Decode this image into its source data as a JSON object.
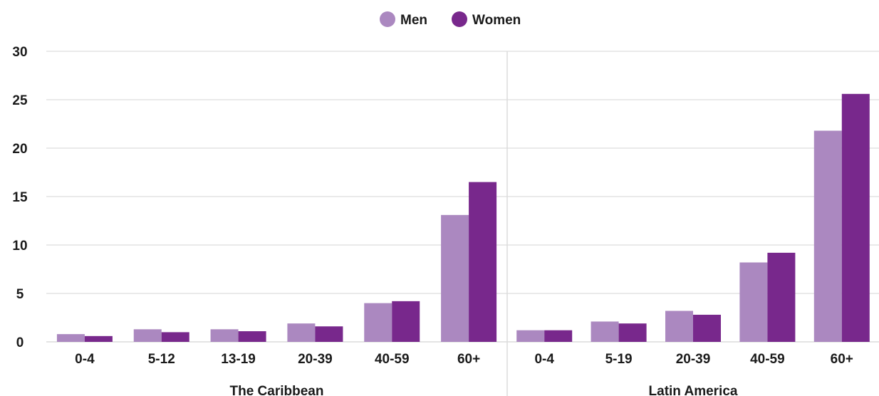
{
  "chart_data": {
    "type": "bar",
    "title": "",
    "ylim": [
      0,
      30
    ],
    "yticks": [
      "0",
      "5",
      "10",
      "15",
      "20",
      "25",
      "30"
    ],
    "grid": true,
    "legend_position": "top-center",
    "series": [
      {
        "name": "Men",
        "color": "#ab88c0"
      },
      {
        "name": "Women",
        "color": "#78288c"
      }
    ],
    "groups": [
      {
        "label": "The Caribbean",
        "categories": [
          "0-4",
          "5-12",
          "13-19",
          "20-39",
          "40-59",
          "60+"
        ],
        "values": {
          "Men": [
            0.8,
            1.3,
            1.3,
            1.9,
            4.0,
            13.1
          ],
          "Women": [
            0.6,
            1.0,
            1.1,
            1.6,
            4.2,
            16.5
          ]
        }
      },
      {
        "label": "Latin America",
        "categories": [
          "0-4",
          "5-19",
          "20-39",
          "40-59",
          "60+"
        ],
        "values": {
          "Men": [
            1.2,
            2.1,
            3.2,
            8.2,
            21.8
          ],
          "Women": [
            1.2,
            1.9,
            2.8,
            9.2,
            25.6
          ]
        }
      }
    ]
  }
}
